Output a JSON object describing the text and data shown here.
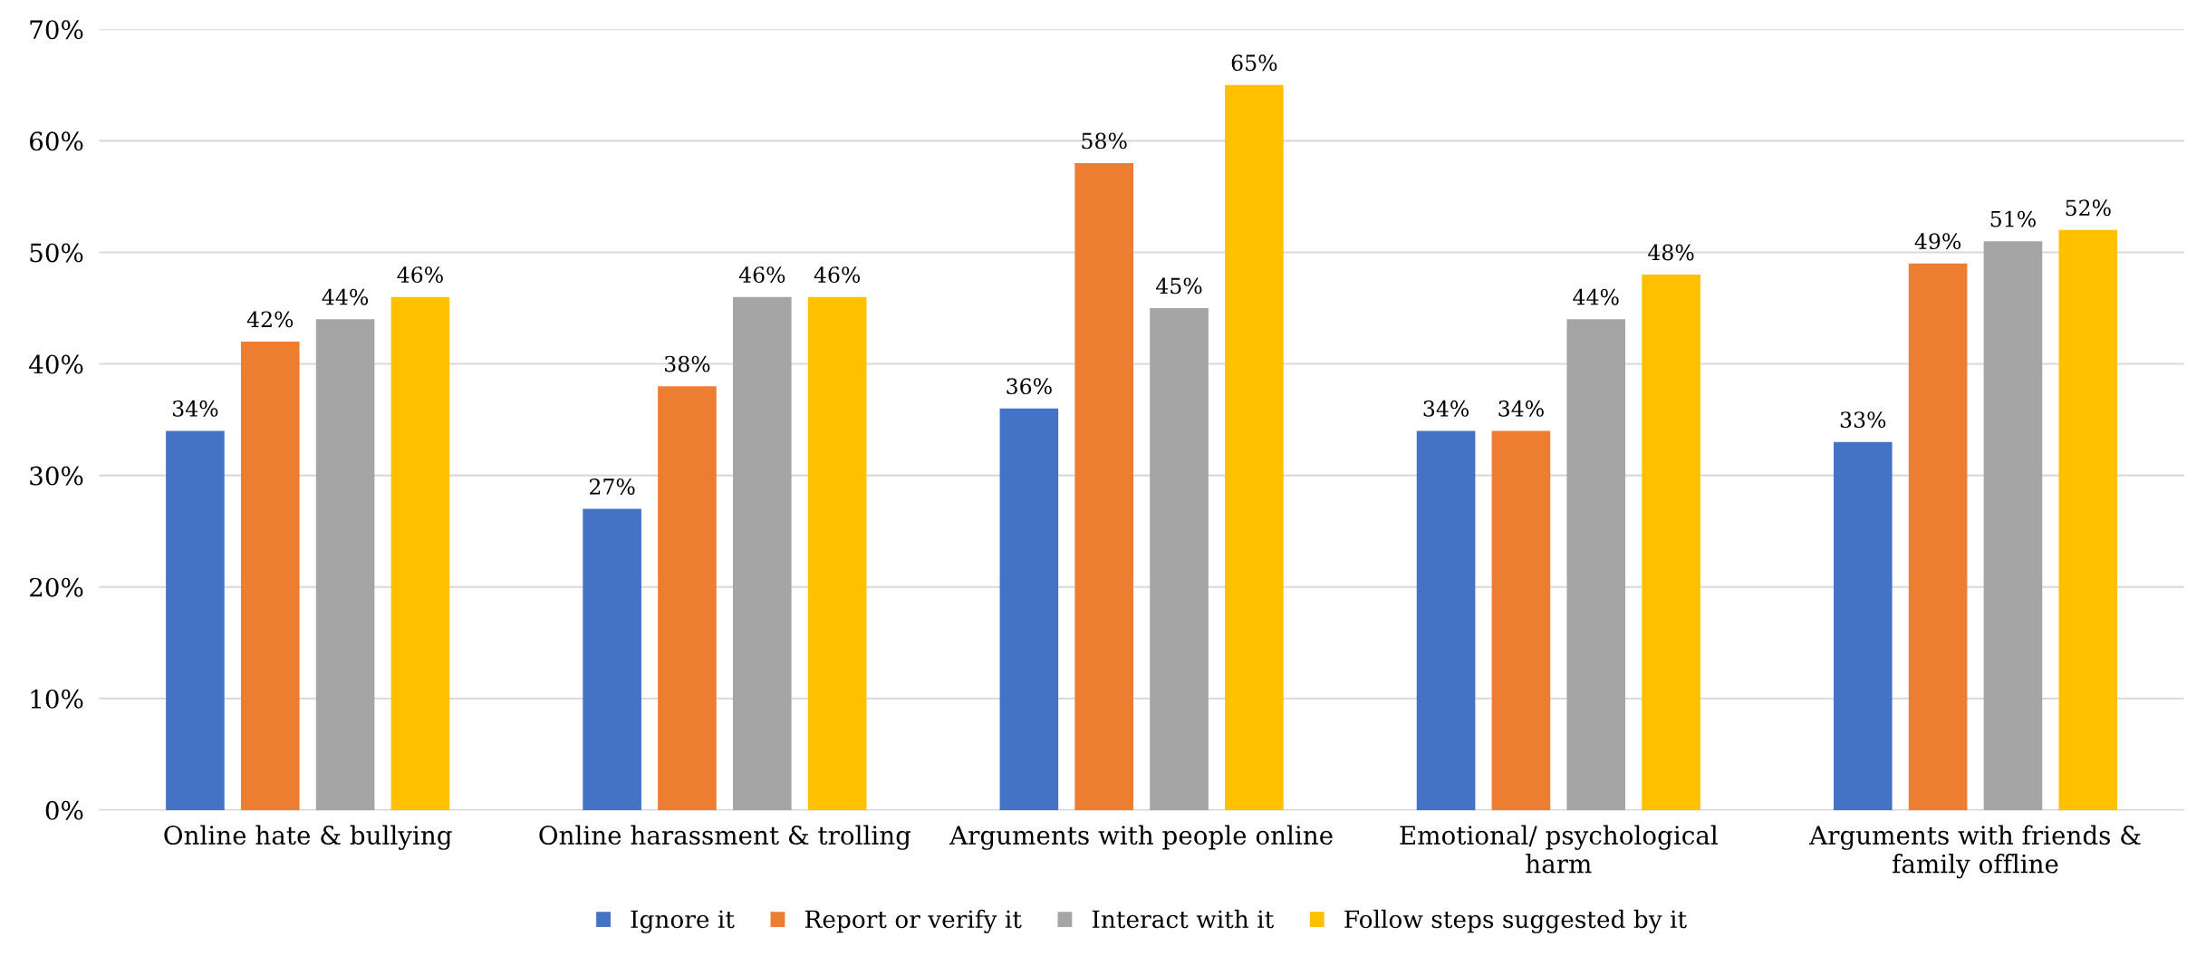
{
  "chart_data": {
    "type": "bar",
    "categories": [
      "Online hate & bullying",
      "Online harassment & trolling",
      "Arguments with people online",
      "Emotional/ psychological\nharm",
      "Arguments with friends &\nfamily offline"
    ],
    "series": [
      {
        "name": "Ignore it",
        "color": "#4472c4",
        "values": [
          34,
          27,
          36,
          34,
          33
        ],
        "value_labels": [
          "34%",
          "27%",
          "36%",
          "34%",
          "33%"
        ]
      },
      {
        "name": "Report or verify it",
        "color": "#ed7d31",
        "values": [
          42,
          38,
          58,
          34,
          49
        ],
        "value_labels": [
          "42%",
          "38%",
          "58%",
          "34%",
          "49%"
        ]
      },
      {
        "name": "Interact with it",
        "color": "#a5a5a5",
        "values": [
          44,
          46,
          45,
          44,
          51
        ],
        "value_labels": [
          "44%",
          "46%",
          "45%",
          "44%",
          "51%"
        ]
      },
      {
        "name": "Follow steps suggested by it",
        "color": "#ffc000",
        "values": [
          46,
          46,
          65,
          48,
          52
        ],
        "value_labels": [
          "46%",
          "46%",
          "65%",
          "48%",
          "52%"
        ]
      }
    ],
    "ylim": [
      0,
      70
    ],
    "yticks": [
      {
        "value": 0,
        "label": "0%"
      },
      {
        "value": 10,
        "label": "10%"
      },
      {
        "value": 20,
        "label": "20%"
      },
      {
        "value": 30,
        "label": "30%"
      },
      {
        "value": 40,
        "label": "40%"
      },
      {
        "value": 50,
        "label": "50%"
      },
      {
        "value": 60,
        "label": "60%"
      },
      {
        "value": 70,
        "label": "70%"
      }
    ],
    "grid": "y",
    "legend": "bottom"
  }
}
